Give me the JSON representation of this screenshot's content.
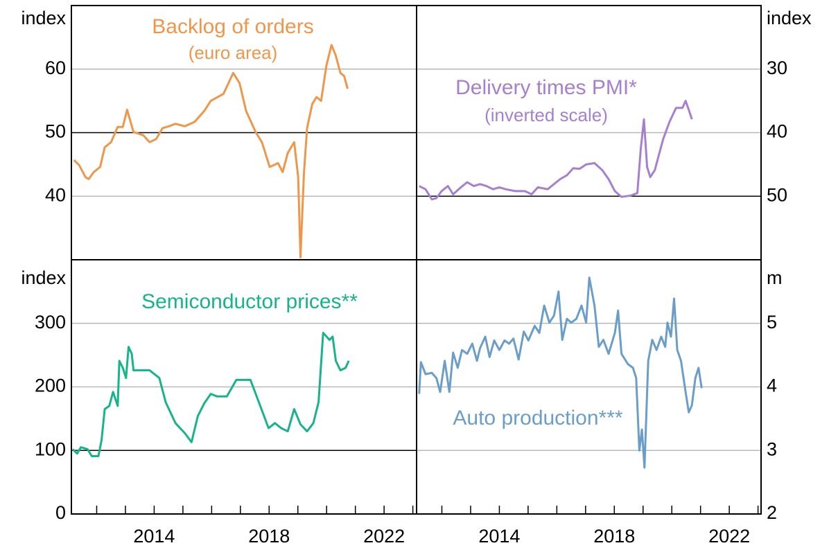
{
  "chart_data": [
    {
      "type": "line",
      "title": "Backlog of orders",
      "subtitle": "(euro area)",
      "axis_label": "index",
      "xlim": [
        2011.12,
        2023.13
      ],
      "ylim": [
        30,
        70
      ],
      "yticks": [
        40,
        50,
        60
      ],
      "reference_line": 50,
      "grid": true,
      "series": [
        {
          "name": "Backlog of orders",
          "color": "#f0964b",
          "x": [
            2011.21,
            2011.39,
            2011.61,
            2011.72,
            2011.9,
            2012.12,
            2012.28,
            2012.5,
            2012.73,
            2012.91,
            2013.06,
            2013.28,
            2013.62,
            2013.84,
            2014.07,
            2014.29,
            2014.51,
            2014.74,
            2015.07,
            2015.41,
            2015.74,
            2015.97,
            2016.41,
            2016.75,
            2016.97,
            2017.2,
            2017.53,
            2017.75,
            2018.02,
            2018.31,
            2018.47,
            2018.65,
            2018.87,
            2019.01,
            2019.09,
            2019.21,
            2019.32,
            2019.5,
            2019.65,
            2019.81,
            2019.99,
            2020.17,
            2020.32,
            2020.48,
            2020.61,
            2020.73
          ],
          "values": [
            45.7,
            44.9,
            43,
            42.7,
            43.8,
            44.6,
            47.7,
            48.5,
            50.9,
            50.9,
            53.6,
            50.1,
            49.6,
            48.5,
            49,
            50.7,
            51,
            51.4,
            51,
            51.7,
            53.4,
            55,
            56.1,
            59.4,
            57.8,
            53.4,
            50.1,
            48.5,
            44.6,
            45.2,
            43.8,
            46.8,
            48.5,
            43,
            30.4,
            43.6,
            50.7,
            54.5,
            55.6,
            55,
            60.5,
            63.8,
            62.1,
            59.4,
            58.9,
            56.9
          ]
        }
      ]
    },
    {
      "type": "line",
      "title": "Delivery times PMI*",
      "subtitle": "(inverted scale)",
      "axis_label": "index",
      "xlim": [
        2011.12,
        2023.13
      ],
      "ylim": [
        20,
        60
      ],
      "inverted": true,
      "yticks": [
        30,
        40,
        50
      ],
      "reference_line": 50,
      "grid": true,
      "series": [
        {
          "name": "Delivery times PMI*",
          "color": "#a77fd0",
          "x": [
            2011.21,
            2011.43,
            2011.65,
            2011.81,
            2011.99,
            2012.21,
            2012.39,
            2012.66,
            2012.88,
            2013.11,
            2013.33,
            2013.55,
            2013.78,
            2014.0,
            2014.22,
            2014.56,
            2014.89,
            2015.12,
            2015.34,
            2015.68,
            2015.9,
            2016.12,
            2016.35,
            2016.57,
            2016.79,
            2017.02,
            2017.31,
            2017.58,
            2017.8,
            2018.02,
            2018.25,
            2018.58,
            2018.8,
            2018.92,
            2019.03,
            2019.14,
            2019.25,
            2019.41,
            2019.54,
            2019.7,
            2019.92,
            2020.15,
            2020.37,
            2020.48,
            2020.59,
            2020.7
          ],
          "values": [
            48.4,
            48.9,
            50.5,
            50.3,
            49.2,
            48.4,
            49.7,
            48.6,
            47.8,
            48.4,
            48.1,
            48.4,
            48.9,
            48.6,
            48.9,
            49.2,
            49.2,
            49.7,
            48.6,
            48.9,
            48.1,
            47.3,
            46.7,
            45.6,
            45.7,
            45,
            44.8,
            45.9,
            47.3,
            49.2,
            50.1,
            49.9,
            49.5,
            42.6,
            37.9,
            45.4,
            47,
            45.9,
            43.7,
            41,
            38.3,
            36.1,
            36.1,
            35,
            36.4,
            37.9
          ]
        }
      ]
    },
    {
      "type": "line",
      "title": "Semiconductor prices**",
      "axis_label": "index",
      "xlim": [
        2011.12,
        2023.13
      ],
      "xticks": [
        2014,
        2018,
        2022
      ],
      "minor_xticks": [
        2012,
        2013,
        2014,
        2015,
        2016,
        2017,
        2018,
        2019,
        2020,
        2021,
        2022,
        2023
      ],
      "ylim": [
        0,
        400
      ],
      "yticks": [
        0,
        100,
        200,
        300
      ],
      "reference_line": 100,
      "grid": true,
      "series": [
        {
          "name": "Semiconductor prices**",
          "color": "#17b38a",
          "x": [
            2011.16,
            2011.32,
            2011.45,
            2011.68,
            2011.83,
            2012.06,
            2012.17,
            2012.28,
            2012.44,
            2012.57,
            2012.73,
            2012.79,
            2012.91,
            2013.02,
            2013.11,
            2013.22,
            2013.28,
            2013.51,
            2013.84,
            2014.18,
            2014.4,
            2014.74,
            2015.07,
            2015.3,
            2015.52,
            2015.74,
            2015.97,
            2016.19,
            2016.53,
            2016.86,
            2017.35,
            2017.64,
            2017.98,
            2018.2,
            2018.42,
            2018.65,
            2018.87,
            2019.09,
            2019.32,
            2019.54,
            2019.72,
            2019.88,
            2020.1,
            2020.21,
            2020.32,
            2020.48,
            2020.66,
            2020.77
          ],
          "values": [
            102,
            95,
            105,
            102,
            91,
            91,
            116,
            165,
            170,
            192,
            170,
            241,
            230,
            214,
            263,
            252,
            226,
            226,
            226,
            214,
            176,
            143,
            127,
            113,
            154,
            174,
            189,
            185,
            185,
            211,
            211,
            176,
            135,
            143,
            135,
            130,
            165,
            141,
            130,
            143,
            176,
            285,
            274,
            279,
            241,
            226,
            230,
            241
          ]
        }
      ]
    },
    {
      "type": "line",
      "title": "Auto production***",
      "axis_label": "m",
      "xlim": [
        2011.12,
        2023.13
      ],
      "xticks": [
        2014,
        2018,
        2022
      ],
      "minor_xticks": [
        2012,
        2013,
        2014,
        2015,
        2016,
        2017,
        2018,
        2019,
        2020,
        2021,
        2022,
        2023
      ],
      "ylim": [
        2,
        6
      ],
      "yticks": [
        2,
        3,
        4,
        5
      ],
      "grid": true,
      "series": [
        {
          "name": "Auto production***",
          "color": "#6a9ec9",
          "x": [
            2011.21,
            2011.27,
            2011.43,
            2011.65,
            2011.81,
            2011.94,
            2012.1,
            2012.26,
            2012.39,
            2012.55,
            2012.7,
            2012.88,
            2013.06,
            2013.22,
            2013.33,
            2013.51,
            2013.66,
            2013.82,
            2014.0,
            2014.18,
            2014.34,
            2014.49,
            2014.67,
            2014.85,
            2015.01,
            2015.23,
            2015.39,
            2015.56,
            2015.74,
            2015.9,
            2016.06,
            2016.19,
            2016.35,
            2016.5,
            2016.68,
            2016.86,
            2017.02,
            2017.13,
            2017.31,
            2017.46,
            2017.62,
            2017.8,
            2018.02,
            2018.13,
            2018.25,
            2018.47,
            2018.65,
            2018.76,
            2018.87,
            2018.96,
            2019.05,
            2019.18,
            2019.32,
            2019.47,
            2019.63,
            2019.77,
            2019.85,
            2019.97,
            2020.08,
            2020.19,
            2020.32,
            2020.48,
            2020.59,
            2020.7,
            2020.82,
            2020.93,
            2021.04
          ],
          "values": [
            3.89,
            4.39,
            4.2,
            4.22,
            4.14,
            3.92,
            4.41,
            3.92,
            4.54,
            4.3,
            4.58,
            4.52,
            4.68,
            4.41,
            4.61,
            4.79,
            4.47,
            4.73,
            4.58,
            4.73,
            4.68,
            4.76,
            4.43,
            4.87,
            4.73,
            4.96,
            4.85,
            5.28,
            5.01,
            5.12,
            5.5,
            4.74,
            5.07,
            5.01,
            5.07,
            5.28,
            5.01,
            5.72,
            5.28,
            4.63,
            4.74,
            4.52,
            4.85,
            5.2,
            4.52,
            4.36,
            4.3,
            4.14,
            3.0,
            3.33,
            2.73,
            4.41,
            4.74,
            4.58,
            4.79,
            4.63,
            5.01,
            4.79,
            5.39,
            4.58,
            4.41,
            3.92,
            3.6,
            3.71,
            4.14,
            4.3,
            3.98
          ]
        }
      ]
    }
  ]
}
